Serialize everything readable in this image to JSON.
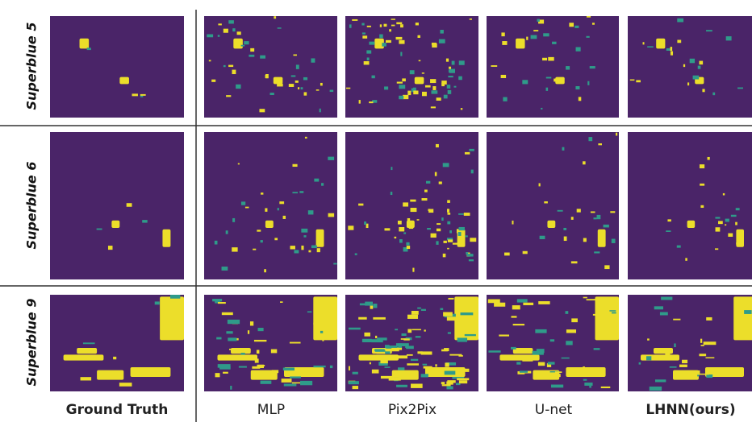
{
  "figure": {
    "row_labels": [
      "Superblue 5",
      "Superblue 6",
      "Superblue 9"
    ],
    "column_labels": [
      "Ground Truth",
      "MLP",
      "Pix2Pix",
      "U-net",
      "LHNN(ours)"
    ]
  }
}
